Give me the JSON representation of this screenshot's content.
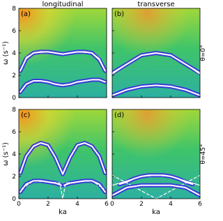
{
  "chart_data": [
    {
      "type": "line",
      "label": "(a)",
      "title": "longitudinal",
      "y_label": "ω (s⁻¹)",
      "xlim": [
        0,
        6
      ],
      "ylim": [
        0,
        8
      ],
      "xticks": [
        0,
        2,
        4,
        6
      ],
      "yticks": [
        0,
        2,
        4,
        6,
        8
      ],
      "series": [
        {
          "style": "band",
          "color": "#3a2ee0",
          "x": [
            0.1,
            0.5,
            1,
            1.5,
            2,
            2.5,
            3,
            3.5,
            4,
            4.5,
            5,
            5.5,
            5.9
          ],
          "values": [
            2.4,
            3.5,
            4.0,
            4.1,
            4.1,
            4.0,
            3.9,
            4.0,
            4.1,
            4.1,
            4.0,
            3.4,
            2.4
          ]
        },
        {
          "style": "solid",
          "color": "#ffffff",
          "x": [
            0.2,
            0.5,
            1,
            2,
            3,
            4,
            5,
            5.5,
            5.8
          ],
          "values": [
            2.6,
            3.6,
            4.0,
            4.1,
            3.9,
            4.1,
            4.0,
            3.5,
            2.7
          ]
        },
        {
          "style": "band",
          "color": "#3a2ee0",
          "x": [
            0.1,
            0.5,
            1,
            1.5,
            2,
            2.5,
            3,
            3.5,
            4,
            4.5,
            5,
            5.5,
            5.9
          ],
          "values": [
            0.5,
            1.2,
            1.5,
            1.5,
            1.4,
            1.2,
            1.1,
            1.2,
            1.4,
            1.5,
            1.6,
            1.6,
            1.4
          ]
        },
        {
          "style": "dashed",
          "color": "#ffffff",
          "x": [
            0.1,
            0.5,
            1,
            1.5,
            2,
            2.5,
            3,
            3.5,
            4,
            4.5,
            5,
            5.5,
            5.9
          ],
          "values": [
            0.5,
            1.2,
            1.5,
            1.5,
            1.4,
            1.2,
            1.1,
            1.2,
            1.4,
            1.5,
            1.6,
            1.6,
            1.4
          ]
        }
      ]
    },
    {
      "type": "line",
      "label": "(b)",
      "title": "transverse",
      "side_label": "θ=0°",
      "xlim": [
        0,
        6
      ],
      "ylim": [
        0,
        8
      ],
      "xticks": [
        0,
        2,
        4,
        6
      ],
      "yticks": [
        0,
        2,
        4,
        6,
        8
      ],
      "series": [
        {
          "style": "band",
          "color": "#3a2ee0",
          "x": [
            0,
            1,
            2,
            3,
            4,
            5,
            6
          ],
          "values": [
            2.2,
            3.0,
            3.8,
            4.0,
            3.8,
            3.0,
            2.2
          ]
        },
        {
          "style": "solid",
          "color": "#ffffff",
          "x": [
            0,
            1,
            2,
            3,
            4,
            5,
            6
          ],
          "values": [
            2.1,
            3.0,
            3.8,
            4.0,
            3.8,
            3.0,
            2.1
          ]
        },
        {
          "style": "band",
          "color": "#3a2ee0",
          "x": [
            0,
            1,
            2,
            3,
            4,
            5,
            6
          ],
          "values": [
            0.2,
            0.7,
            1.0,
            1.1,
            1.0,
            0.7,
            0.2
          ]
        },
        {
          "style": "dashed",
          "color": "#ffffff",
          "x": [
            0,
            1,
            2,
            3,
            4,
            5,
            6
          ],
          "values": [
            0.2,
            0.7,
            1.0,
            1.1,
            1.0,
            0.7,
            0.2
          ]
        }
      ]
    },
    {
      "type": "line",
      "label": "(c)",
      "y_label": "ω (s⁻¹)",
      "x_label": "ka",
      "xlim": [
        0,
        6
      ],
      "ylim": [
        0,
        8
      ],
      "xticks": [
        0,
        2,
        4,
        6
      ],
      "yticks": [
        0,
        2,
        4,
        6,
        8
      ],
      "series": [
        {
          "style": "band",
          "color": "#3a2ee0",
          "x": [
            0.1,
            0.5,
            1,
            1.5,
            2,
            2.5,
            3,
            3.5,
            4,
            4.5,
            5,
            5.5,
            5.9
          ],
          "values": [
            2.3,
            3.8,
            4.7,
            5.0,
            4.8,
            3.7,
            2.2,
            3.7,
            4.8,
            5.0,
            4.7,
            3.8,
            2.3
          ]
        },
        {
          "style": "solid",
          "color": "#ffffff",
          "x": [
            0.1,
            0.5,
            1,
            1.5,
            2,
            2.5,
            3,
            3.5,
            4,
            4.5,
            5,
            5.5,
            5.9
          ],
          "values": [
            2.3,
            3.8,
            4.7,
            5.0,
            4.8,
            3.7,
            2.2,
            3.7,
            4.8,
            5.0,
            4.7,
            3.8,
            2.3
          ]
        },
        {
          "style": "band",
          "color": "#3a2ee0",
          "x": [
            0.1,
            0.5,
            1,
            1.5,
            2,
            2.5,
            2.9,
            3,
            3.1,
            3.5,
            4,
            4.5,
            5,
            5.5,
            5.9
          ],
          "values": [
            0.6,
            1.3,
            1.6,
            1.6,
            1.5,
            1.4,
            1.2,
            null,
            1.2,
            1.4,
            1.5,
            1.6,
            1.6,
            1.3,
            0.6
          ]
        },
        {
          "style": "dashed",
          "color": "#ffffff",
          "x": [
            0.2,
            1,
            2,
            2.8,
            3,
            3.2,
            4,
            5,
            5.8
          ],
          "values": [
            0.9,
            1.6,
            1.5,
            1.4,
            0,
            1.4,
            1.5,
            1.6,
            0.9
          ]
        }
      ]
    },
    {
      "type": "line",
      "label": "(d)",
      "side_label": "θ=45°",
      "x_label": "ka",
      "xlim": [
        0,
        6
      ],
      "ylim": [
        0,
        8
      ],
      "xticks": [
        0,
        2,
        4,
        6
      ],
      "yticks": [
        0,
        2,
        4,
        6,
        8
      ],
      "series": [
        {
          "style": "band",
          "color": "#3a2ee0",
          "x": [
            0.5,
            1,
            1.5,
            2,
            2.5,
            3,
            3.5,
            4,
            4.5,
            5,
            5.5
          ],
          "values": [
            1.3,
            1.5,
            1.8,
            2.0,
            2.1,
            2.1,
            2.1,
            2.0,
            1.8,
            1.5,
            1.3
          ]
        },
        {
          "style": "solid",
          "color": "#ffffff",
          "x": [
            0,
            1,
            2,
            3,
            4,
            5,
            6
          ],
          "values": [
            1.2,
            1.6,
            2.0,
            2.1,
            2.0,
            1.6,
            1.2
          ]
        },
        {
          "style": "dashed",
          "color": "#ffffff",
          "x": [
            0,
            1,
            2,
            3,
            4,
            5,
            6
          ],
          "values": [
            2.1,
            1.4,
            0.7,
            0,
            0.7,
            1.4,
            2.1
          ]
        },
        {
          "style": "band",
          "color": "#3a2ee0",
          "x": [
            0,
            1,
            2,
            3,
            4,
            5,
            6
          ],
          "values": [
            0.3,
            1.0,
            1.2,
            1.2,
            1.2,
            1.0,
            0.3
          ]
        }
      ]
    }
  ]
}
